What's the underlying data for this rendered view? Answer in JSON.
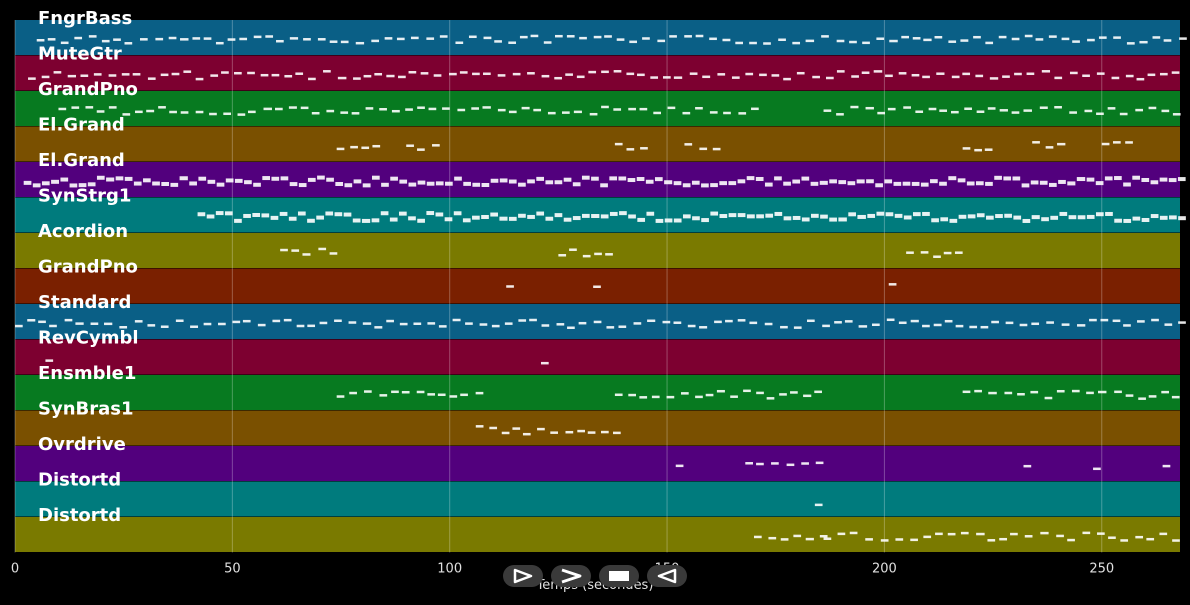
{
  "tracks": [
    {
      "name": "FngrBass",
      "color": "#0a5f86"
    },
    {
      "name": "MuteGtr",
      "color": "#7d0030"
    },
    {
      "name": "GrandPno",
      "color": "#077a20"
    },
    {
      "name": "El.Grand",
      "color": "#7a5000"
    },
    {
      "name": "El.Grand",
      "color": "#52007d"
    },
    {
      "name": "SynStrg1",
      "color": "#007b7d"
    },
    {
      "name": "Acordion",
      "color": "#7a7a00"
    },
    {
      "name": "GrandPno",
      "color": "#7a2000"
    },
    {
      "name": "Standard",
      "color": "#0a5f86"
    },
    {
      "name": "RevCymbl",
      "color": "#7d0030"
    },
    {
      "name": "Ensmble1",
      "color": "#077a20"
    },
    {
      "name": "SynBras1",
      "color": "#7a5000"
    },
    {
      "name": "Ovrdrive",
      "color": "#52007d"
    },
    {
      "name": "Distortd",
      "color": "#007b7d"
    },
    {
      "name": "Distortd",
      "color": "#7a7a00"
    }
  ],
  "x_axis": {
    "label": "Temps (secondes)",
    "min": 0,
    "max": 268,
    "ticks": [
      0,
      50,
      100,
      150,
      200,
      250
    ]
  },
  "transport": {
    "play_icon": "play-icon",
    "forward_icon": "fast-forward-icon",
    "stop_icon": "stop-icon",
    "rewind_icon": "rewind-icon"
  }
}
